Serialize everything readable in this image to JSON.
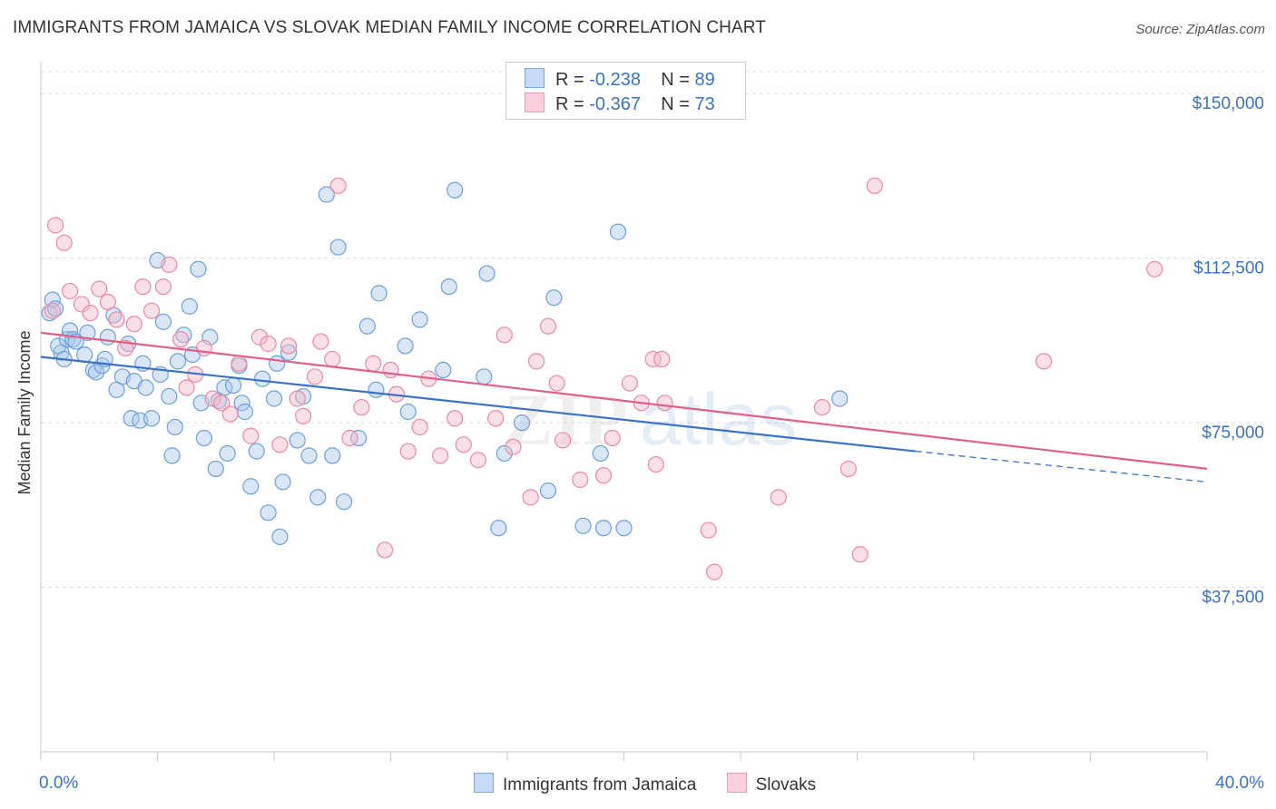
{
  "header": {
    "title": "IMMIGRANTS FROM JAMAICA VS SLOVAK MEDIAN FAMILY INCOME CORRELATION CHART",
    "source": "Source: ZipAtlas.com"
  },
  "legend": {
    "r_label": "R =",
    "n_label": "N =",
    "entries": [
      {
        "r": "-0.238",
        "n": "89",
        "color": "#a8c8f0"
      },
      {
        "r": "-0.367",
        "n": "73",
        "color": "#f5b8c8"
      }
    ]
  },
  "chart_data": {
    "type": "scatter",
    "title": "IMMIGRANTS FROM JAMAICA VS SLOVAK MEDIAN FAMILY INCOME CORRELATION CHART",
    "xlabel": "",
    "ylabel": "Median Family Income",
    "xlim": [
      0,
      40
    ],
    "ylim": [
      0,
      155000
    ],
    "x_tick_labels": [
      "0.0%",
      "40.0%"
    ],
    "y_ticks": [
      37500,
      75000,
      112500,
      150000
    ],
    "y_tick_labels": [
      "$37,500",
      "$75,000",
      "$112,500",
      "$150,000"
    ],
    "grid": true,
    "legend_position": "top-center",
    "watermark": "ZIPatlas",
    "series": [
      {
        "name": "Immigrants from Jamaica",
        "color": "#a8c8f0",
        "stroke": "#6e9fd8",
        "trend_color": "#3a72c6",
        "trend": {
          "x0": 0,
          "y0": 90000,
          "x1": 30,
          "y1": 68500,
          "dash_to_x": 40,
          "dash_to_y": 61500
        },
        "points": [
          [
            0.3,
            100000
          ],
          [
            0.4,
            103000
          ],
          [
            0.7,
            91000
          ],
          [
            0.6,
            92500
          ],
          [
            0.8,
            89500
          ],
          [
            0.9,
            94000
          ],
          [
            1.0,
            96000
          ],
          [
            1.1,
            94000
          ],
          [
            1.2,
            93500
          ],
          [
            1.5,
            90500
          ],
          [
            1.6,
            95500
          ],
          [
            1.8,
            87000
          ],
          [
            1.9,
            86500
          ],
          [
            2.1,
            88000
          ],
          [
            2.2,
            89500
          ],
          [
            2.3,
            94500
          ],
          [
            2.5,
            99500
          ],
          [
            2.6,
            82500
          ],
          [
            2.8,
            85500
          ],
          [
            3.0,
            93000
          ],
          [
            3.1,
            76000
          ],
          [
            3.2,
            84500
          ],
          [
            3.4,
            75500
          ],
          [
            3.5,
            88500
          ],
          [
            3.6,
            83000
          ],
          [
            3.8,
            76000
          ],
          [
            4.0,
            112000
          ],
          [
            4.1,
            86000
          ],
          [
            4.2,
            98000
          ],
          [
            4.4,
            81000
          ],
          [
            4.5,
            67500
          ],
          [
            4.6,
            74000
          ],
          [
            4.7,
            89000
          ],
          [
            4.9,
            95000
          ],
          [
            5.1,
            101500
          ],
          [
            5.2,
            90500
          ],
          [
            5.4,
            110000
          ],
          [
            5.5,
            79500
          ],
          [
            5.6,
            71500
          ],
          [
            5.8,
            94500
          ],
          [
            6.0,
            64500
          ],
          [
            6.1,
            80000
          ],
          [
            6.3,
            83000
          ],
          [
            6.4,
            68000
          ],
          [
            6.6,
            83500
          ],
          [
            6.8,
            88000
          ],
          [
            6.9,
            79500
          ],
          [
            7.0,
            77500
          ],
          [
            7.2,
            60500
          ],
          [
            7.4,
            68500
          ],
          [
            7.6,
            85000
          ],
          [
            7.8,
            54500
          ],
          [
            8.0,
            80500
          ],
          [
            8.2,
            49000
          ],
          [
            8.3,
            61500
          ],
          [
            8.5,
            91000
          ],
          [
            8.8,
            71000
          ],
          [
            9.0,
            81000
          ],
          [
            9.2,
            67500
          ],
          [
            9.5,
            58000
          ],
          [
            9.8,
            127000
          ],
          [
            10.0,
            67500
          ],
          [
            10.2,
            115000
          ],
          [
            10.4,
            57000
          ],
          [
            10.9,
            71500
          ],
          [
            11.2,
            97000
          ],
          [
            11.5,
            82500
          ],
          [
            11.6,
            104500
          ],
          [
            12.5,
            92500
          ],
          [
            12.6,
            77500
          ],
          [
            13.0,
            98500
          ],
          [
            13.8,
            87000
          ],
          [
            14.0,
            106000
          ],
          [
            14.2,
            128000
          ],
          [
            15.2,
            85500
          ],
          [
            15.3,
            109000
          ],
          [
            15.7,
            51000
          ],
          [
            15.9,
            68000
          ],
          [
            16.5,
            75000
          ],
          [
            17.4,
            59500
          ],
          [
            17.6,
            103500
          ],
          [
            18.6,
            51500
          ],
          [
            19.2,
            68000
          ],
          [
            19.3,
            51000
          ],
          [
            19.8,
            118500
          ],
          [
            20.0,
            51000
          ],
          [
            27.4,
            80500
          ],
          [
            0.5,
            101000
          ],
          [
            8.1,
            88500
          ]
        ]
      },
      {
        "name": "Slovaks",
        "color": "#f5b8c8",
        "stroke": "#e88aa6",
        "trend_color": "#e0608a",
        "trend": {
          "x0": 0,
          "y0": 95500,
          "x1": 40,
          "y1": 64500
        },
        "points": [
          [
            0.4,
            100500
          ],
          [
            0.5,
            120000
          ],
          [
            0.8,
            116000
          ],
          [
            1.0,
            105000
          ],
          [
            1.4,
            102000
          ],
          [
            1.7,
            100000
          ],
          [
            2.0,
            105500
          ],
          [
            2.3,
            102500
          ],
          [
            2.6,
            98500
          ],
          [
            2.9,
            92000
          ],
          [
            3.2,
            97500
          ],
          [
            3.5,
            106000
          ],
          [
            3.8,
            100500
          ],
          [
            4.2,
            106000
          ],
          [
            4.4,
            111000
          ],
          [
            4.8,
            94000
          ],
          [
            5.0,
            83000
          ],
          [
            5.3,
            86000
          ],
          [
            5.6,
            92000
          ],
          [
            5.9,
            80500
          ],
          [
            6.2,
            79500
          ],
          [
            6.5,
            77000
          ],
          [
            6.8,
            88500
          ],
          [
            7.2,
            72000
          ],
          [
            7.5,
            94500
          ],
          [
            7.8,
            93000
          ],
          [
            8.2,
            70000
          ],
          [
            8.5,
            92500
          ],
          [
            8.8,
            80500
          ],
          [
            9.0,
            76500
          ],
          [
            9.4,
            85500
          ],
          [
            9.6,
            93500
          ],
          [
            10.0,
            89500
          ],
          [
            10.2,
            129000
          ],
          [
            10.6,
            71500
          ],
          [
            11.0,
            78500
          ],
          [
            11.4,
            88500
          ],
          [
            11.8,
            46000
          ],
          [
            12.0,
            87000
          ],
          [
            12.2,
            81500
          ],
          [
            12.6,
            68500
          ],
          [
            13.0,
            74000
          ],
          [
            13.3,
            85000
          ],
          [
            13.7,
            67500
          ],
          [
            14.2,
            76000
          ],
          [
            14.5,
            70000
          ],
          [
            15.0,
            66500
          ],
          [
            15.6,
            76000
          ],
          [
            15.9,
            95000
          ],
          [
            16.2,
            69500
          ],
          [
            16.8,
            58000
          ],
          [
            17.0,
            89000
          ],
          [
            17.4,
            97000
          ],
          [
            17.7,
            84000
          ],
          [
            17.9,
            71000
          ],
          [
            18.5,
            62000
          ],
          [
            19.3,
            63000
          ],
          [
            19.6,
            71500
          ],
          [
            20.2,
            84000
          ],
          [
            20.6,
            79500
          ],
          [
            21.0,
            89500
          ],
          [
            21.3,
            89500
          ],
          [
            21.4,
            79500
          ],
          [
            22.9,
            50500
          ],
          [
            23.1,
            41000
          ],
          [
            25.3,
            58000
          ],
          [
            26.8,
            78500
          ],
          [
            27.7,
            64500
          ],
          [
            28.1,
            45000
          ],
          [
            28.6,
            129000
          ],
          [
            34.4,
            89000
          ],
          [
            38.2,
            110000
          ],
          [
            21.1,
            65500
          ]
        ]
      }
    ]
  }
}
